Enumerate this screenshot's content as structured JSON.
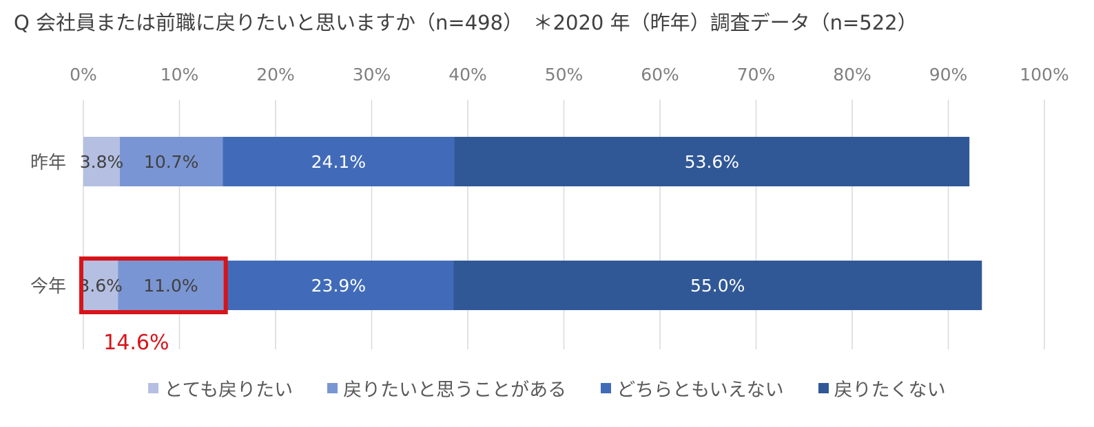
{
  "title": "Q 会社員または前職に戻りたいと思いますか（n=498）　＊2020 年（昨年）調査データ（n=522）",
  "chart_data": {
    "type": "bar",
    "orientation": "horizontal",
    "stacked": "percent",
    "xlim": [
      0,
      100
    ],
    "x_ticks": [
      "0%",
      "10%",
      "20%",
      "30%",
      "40%",
      "50%",
      "60%",
      "70%",
      "80%",
      "90%",
      "100%"
    ],
    "categories": [
      "昨年",
      "今年"
    ],
    "series": [
      {
        "name": "とても戻りたい",
        "color": "#b4bfe2",
        "values": [
          3.8,
          3.6
        ],
        "labels": [
          "3.8%",
          "3.6%"
        ]
      },
      {
        "name": "戻りたいと思うことがある",
        "color": "#7a95d3",
        "values": [
          10.7,
          11.0
        ],
        "labels": [
          "10.7%",
          "11.0%"
        ]
      },
      {
        "name": "どちらともいえない",
        "color": "#416bb9",
        "values": [
          24.1,
          23.9
        ],
        "labels": [
          "24.1%",
          "23.9%"
        ]
      },
      {
        "name": "戻りたくない",
        "color": "#315896",
        "values": [
          53.6,
          55.0
        ],
        "labels": [
          "53.6%",
          "55.0%"
        ]
      }
    ],
    "grid": true,
    "legend_position": "bottom",
    "annotation": {
      "category": "今年",
      "series_span": [
        0,
        1
      ],
      "text": "14.6%",
      "color": "#d7141a"
    }
  }
}
